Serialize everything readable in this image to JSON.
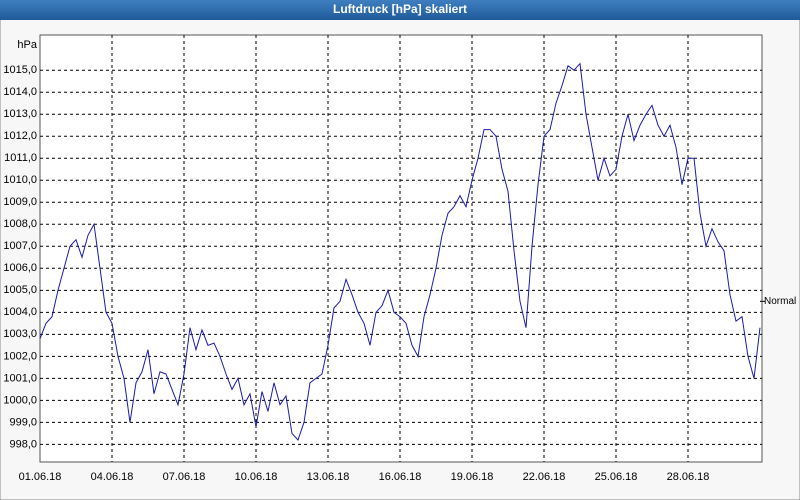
{
  "chart_data": {
    "type": "line",
    "title": "Luftdruck [hPa] skaliert",
    "y_unit": "hPa",
    "xlim": [
      0,
      30
    ],
    "ylim": [
      997.2,
      1016.6
    ],
    "xticks": [
      {
        "value": 0,
        "label": "01.06.18"
      },
      {
        "value": 3,
        "label": "04.06.18"
      },
      {
        "value": 6,
        "label": "07.06.18"
      },
      {
        "value": 9,
        "label": "10.06.18"
      },
      {
        "value": 12,
        "label": "13.06.18"
      },
      {
        "value": 15,
        "label": "16.06.18"
      },
      {
        "value": 18,
        "label": "19.06.18"
      },
      {
        "value": 21,
        "label": "22.06.18"
      },
      {
        "value": 24,
        "label": "25.06.18"
      },
      {
        "value": 27,
        "label": "28.06.18"
      }
    ],
    "yticks": [
      {
        "value": 998,
        "label": "998,0"
      },
      {
        "value": 999,
        "label": "999,0"
      },
      {
        "value": 1000,
        "label": "1000,0"
      },
      {
        "value": 1001,
        "label": "1001,0"
      },
      {
        "value": 1002,
        "label": "1002,0"
      },
      {
        "value": 1003,
        "label": "1003,0"
      },
      {
        "value": 1004,
        "label": "1004,0"
      },
      {
        "value": 1005,
        "label": "1005,0"
      },
      {
        "value": 1006,
        "label": "1006,0"
      },
      {
        "value": 1007,
        "label": "1007,0"
      },
      {
        "value": 1008,
        "label": "1008,0"
      },
      {
        "value": 1009,
        "label": "1009,0"
      },
      {
        "value": 1010,
        "label": "1010,0"
      },
      {
        "value": 1011,
        "label": "1011,0"
      },
      {
        "value": 1012,
        "label": "1012,0"
      },
      {
        "value": 1013,
        "label": "1013,0"
      },
      {
        "value": 1014,
        "label": "1014,0"
      },
      {
        "value": 1015,
        "label": "1015,0"
      }
    ],
    "grid": true,
    "reference": {
      "text": "Normal",
      "value": 1004.5
    },
    "x": [
      0,
      0.25,
      0.5,
      0.75,
      1,
      1.25,
      1.5,
      1.75,
      2,
      2.25,
      2.5,
      2.75,
      3,
      3.25,
      3.5,
      3.75,
      4,
      4.25,
      4.5,
      4.75,
      5,
      5.25,
      5.5,
      5.75,
      6,
      6.25,
      6.5,
      6.75,
      7,
      7.25,
      7.5,
      7.75,
      8,
      8.25,
      8.5,
      8.75,
      9,
      9.25,
      9.5,
      9.75,
      10,
      10.25,
      10.5,
      10.75,
      11,
      11.25,
      11.5,
      11.75,
      12,
      12.25,
      12.5,
      12.75,
      13,
      13.25,
      13.5,
      13.75,
      14,
      14.25,
      14.5,
      14.75,
      15,
      15.25,
      15.5,
      15.75,
      16,
      16.25,
      16.5,
      16.75,
      17,
      17.25,
      17.5,
      17.75,
      18,
      18.25,
      18.5,
      18.75,
      19,
      19.25,
      19.5,
      19.75,
      20,
      20.25,
      20.5,
      20.75,
      21,
      21.25,
      21.5,
      21.75,
      22,
      22.25,
      22.5,
      22.75,
      23,
      23.25,
      23.5,
      23.75,
      24,
      24.25,
      24.5,
      24.75,
      25,
      25.25,
      25.5,
      25.75,
      26,
      26.25,
      26.5,
      26.75,
      27,
      27.25,
      27.5,
      27.75,
      28,
      28.25,
      28.5,
      28.75,
      29,
      29.25,
      29.5,
      29.75,
      30
    ],
    "series": [
      {
        "color": "#1a1aa8",
        "values": [
          1002.8,
          1003.5,
          1003.8,
          1005.0,
          1006.0,
          1007.0,
          1007.3,
          1006.5,
          1007.5,
          1008.0,
          1006.0,
          1004.0,
          1003.5,
          1002.0,
          1001.0,
          999.0,
          1000.8,
          1001.3,
          1002.3,
          1000.3,
          1001.3,
          1001.2,
          1000.5,
          999.8,
          1001.2,
          1003.3,
          1002.3,
          1003.2,
          1002.5,
          1002.6,
          1002.0,
          1001.2,
          1000.5,
          1001.0,
          999.8,
          1000.3,
          998.8,
          1000.4,
          999.5,
          1000.8,
          999.8,
          1000.2,
          998.5,
          998.2,
          999.0,
          1000.8,
          1001.0,
          1001.2,
          1002.5,
          1004.2,
          1004.5,
          1005.5,
          1004.8,
          1004.0,
          1003.5,
          1002.5,
          1004.0,
          1004.3,
          1005.0,
          1004.0,
          1003.8,
          1003.5,
          1002.5,
          1002.0,
          1003.8,
          1004.8,
          1006.0,
          1007.5,
          1008.5,
          1008.8,
          1009.3,
          1008.8,
          1010.0,
          1011.0,
          1012.3,
          1012.3,
          1012.0,
          1010.5,
          1009.5,
          1006.8,
          1004.5,
          1003.3,
          1007.0,
          1009.8,
          1012.0,
          1012.3,
          1013.5,
          1014.3,
          1015.2,
          1015.0,
          1015.3,
          1013.0,
          1011.5,
          1010.0,
          1011.0,
          1010.2,
          1010.5,
          1012.0,
          1013.0,
          1011.8,
          1012.5,
          1013.0,
          1013.4,
          1012.5,
          1012.0,
          1012.5,
          1011.5,
          1009.8,
          1011.0,
          1011.0,
          1008.5,
          1007.0,
          1007.8,
          1007.2,
          1006.8,
          1004.8,
          1003.6,
          1003.8,
          1002.0,
          1001.0,
          1003.3
        ]
      }
    ]
  }
}
